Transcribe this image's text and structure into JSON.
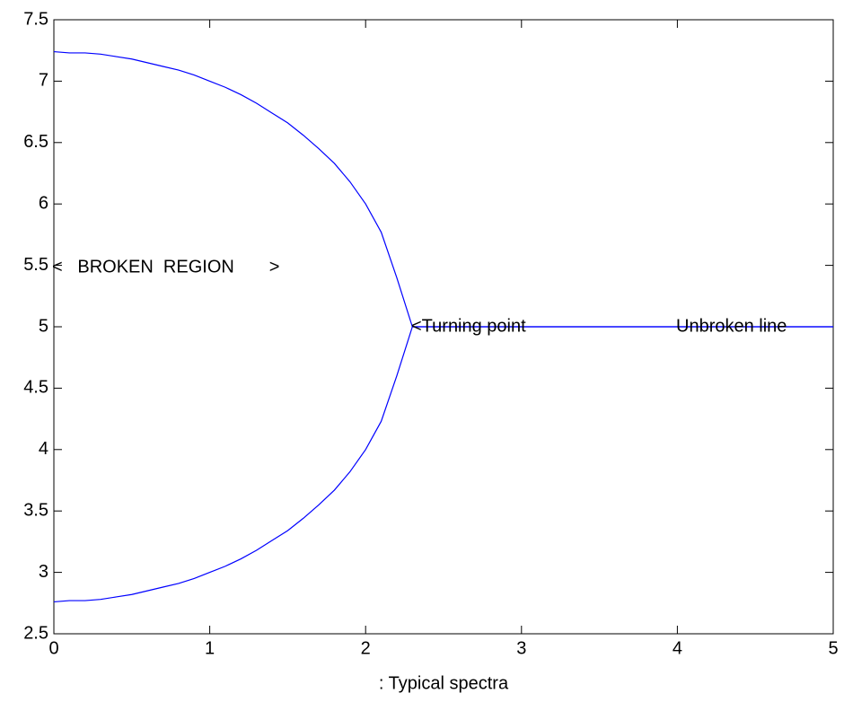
{
  "chart_data": {
    "type": "line",
    "xlabel": ": Typical spectra",
    "x": [
      0,
      0.1,
      0.2,
      0.3,
      0.4,
      0.5,
      0.6,
      0.7,
      0.8,
      0.9,
      1.0,
      1.1,
      1.2,
      1.3,
      1.4,
      1.5,
      1.6,
      1.7,
      1.8,
      1.9,
      2.0,
      2.1,
      2.2,
      2.3,
      5
    ],
    "series": [
      {
        "color": "#0000ff",
        "values": [
          7.24,
          7.23,
          7.23,
          7.22,
          7.2,
          7.18,
          7.15,
          7.12,
          7.09,
          7.05,
          7.0,
          6.95,
          6.89,
          6.82,
          6.74,
          6.66,
          6.56,
          6.45,
          6.33,
          6.18,
          6.0,
          5.77,
          5.4,
          5,
          5
        ]
      },
      {
        "color": "#0000ff",
        "values": [
          2.76,
          2.77,
          2.77,
          2.78,
          2.8,
          2.82,
          2.85,
          2.88,
          2.91,
          2.95,
          3.0,
          3.05,
          3.11,
          3.18,
          3.26,
          3.34,
          3.44,
          3.55,
          3.67,
          3.82,
          4.0,
          4.23,
          4.6,
          5,
          5
        ]
      }
    ],
    "annotations": [
      "<   BROKEN  REGION       >",
      "<Turning point",
      "Unbroken line"
    ],
    "xlim": [
      0,
      5
    ],
    "xticks": [
      0,
      1,
      2,
      3,
      4,
      5
    ],
    "ylim": [
      2.5,
      7.5
    ],
    "yticks": [
      2.5,
      3,
      3.5,
      4,
      4.5,
      5,
      5.5,
      6,
      6.5,
      7,
      7.5
    ],
    "grid": false
  }
}
